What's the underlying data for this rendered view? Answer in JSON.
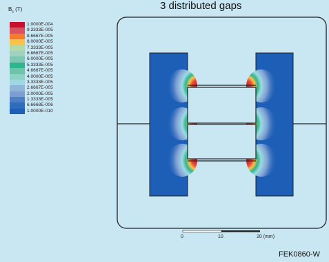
{
  "title": "3 distributed gaps",
  "legend": {
    "title_symbol": "B",
    "title_sub": "s",
    "title_unit": "(T)",
    "entries": [
      {
        "label": "1.0000E-004",
        "color": "#c8102e"
      },
      {
        "label": "9.3333E-005",
        "color": "#d9525e"
      },
      {
        "label": "8.6667E-005",
        "color": "#f47c2c"
      },
      {
        "label": "8.0000E-005",
        "color": "#f9c34a"
      },
      {
        "label": "7.3333E-005",
        "color": "#b3d9a8"
      },
      {
        "label": "6.6667E-005",
        "color": "#9fd1bd"
      },
      {
        "label": "6.0000E-005",
        "color": "#7fc7b2"
      },
      {
        "label": "5.3333E-005",
        "color": "#2fb58f"
      },
      {
        "label": "4.6667E-005",
        "color": "#6fc3a9"
      },
      {
        "label": "4.0000E-005",
        "color": "#8fd3c5"
      },
      {
        "label": "3.3333E-005",
        "color": "#9ed9e3"
      },
      {
        "label": "2.6667E-005",
        "color": "#8fb5d9"
      },
      {
        "label": "2.0000E-005",
        "color": "#7d9ed3"
      },
      {
        "label": "1.3333E-005",
        "color": "#4e7fc5"
      },
      {
        "label": "6.6668E-006",
        "color": "#2e6cbc"
      },
      {
        "label": "1.0000E-010",
        "color": "#1d5fb6"
      }
    ]
  },
  "scale_bar": {
    "ticks": [
      "0",
      "10",
      "20 (mm)"
    ]
  },
  "figure_code": "FEK0860-W"
}
